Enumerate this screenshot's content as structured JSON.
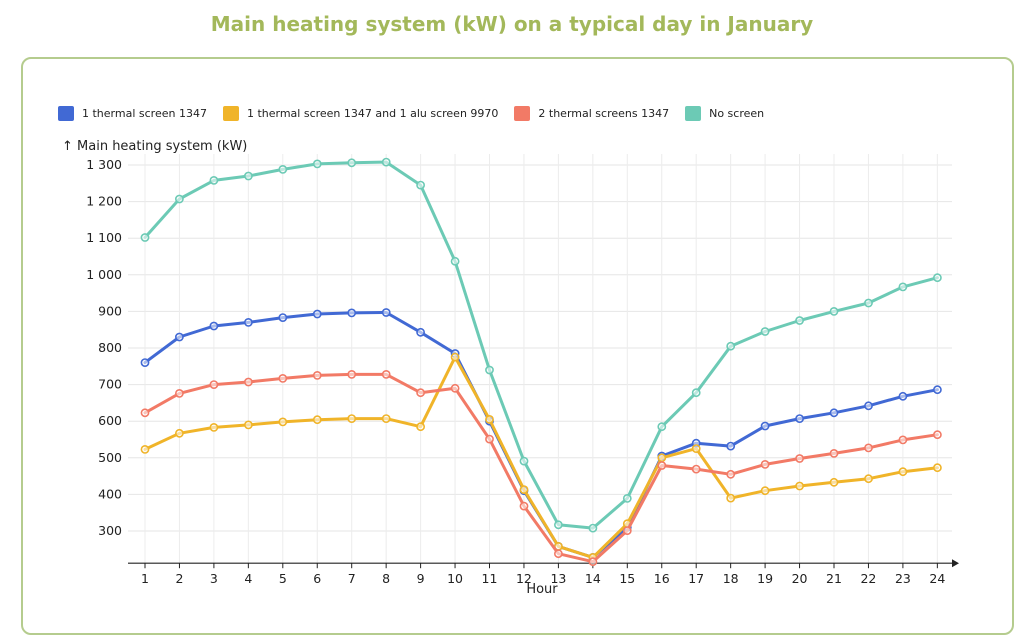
{
  "page": {
    "title": "Main heating system (kW) on a typical day in January"
  },
  "chart_data": {
    "type": "line",
    "ylabel": "↑ Main heating system (kW)",
    "xlabel": "Hour",
    "x": [
      1,
      2,
      3,
      4,
      5,
      6,
      7,
      8,
      9,
      10,
      11,
      12,
      13,
      14,
      15,
      16,
      17,
      18,
      19,
      20,
      21,
      22,
      23,
      24
    ],
    "x_tick_labels": [
      "1",
      "2",
      "3",
      "4",
      "5",
      "6",
      "7",
      "8",
      "9",
      "10",
      "11",
      "12",
      "13",
      "14",
      "15",
      "16",
      "17",
      "18",
      "19",
      "20",
      "21",
      "22",
      "23",
      "24"
    ],
    "y_ticks": [
      300,
      400,
      500,
      600,
      700,
      800,
      900,
      1000,
      1100,
      1200,
      1300
    ],
    "y_tick_labels": [
      "300",
      "400",
      "500",
      "600",
      "700",
      "800",
      "900",
      "1 000",
      "1 100",
      "1 200",
      "1 300"
    ],
    "ylim": [
      212,
      1330
    ],
    "grid": true,
    "legend_position": "top-left",
    "series": [
      {
        "name": "1 thermal screen 1347",
        "color": "#4169d4",
        "values": [
          760,
          830,
          860,
          870,
          883,
          893,
          896,
          897,
          843,
          785,
          600,
          410,
          258,
          228,
          310,
          505,
          540,
          532,
          587,
          607,
          623,
          642,
          668,
          686
        ]
      },
      {
        "name": "1 thermal screen 1347 and 1 alu screen 9970",
        "color": "#f0b429",
        "values": [
          523,
          567,
          583,
          590,
          598,
          604,
          607,
          607,
          585,
          775,
          605,
          413,
          258,
          228,
          320,
          500,
          525,
          390,
          410,
          423,
          433,
          443,
          462,
          473
        ]
      },
      {
        "name": "2 thermal screens 1347",
        "color": "#f27a66",
        "values": [
          623,
          676,
          700,
          707,
          717,
          725,
          728,
          728,
          678,
          690,
          551,
          368,
          238,
          216,
          301,
          479,
          469,
          455,
          482,
          498,
          512,
          527,
          549,
          563
        ]
      },
      {
        "name": "No screen",
        "color": "#6ccab5",
        "values": [
          1102,
          1207,
          1258,
          1270,
          1288,
          1303,
          1306,
          1308,
          1245,
          1037,
          740,
          491,
          317,
          308,
          389,
          585,
          678,
          805,
          845,
          875,
          900,
          923,
          967,
          992
        ]
      }
    ]
  }
}
